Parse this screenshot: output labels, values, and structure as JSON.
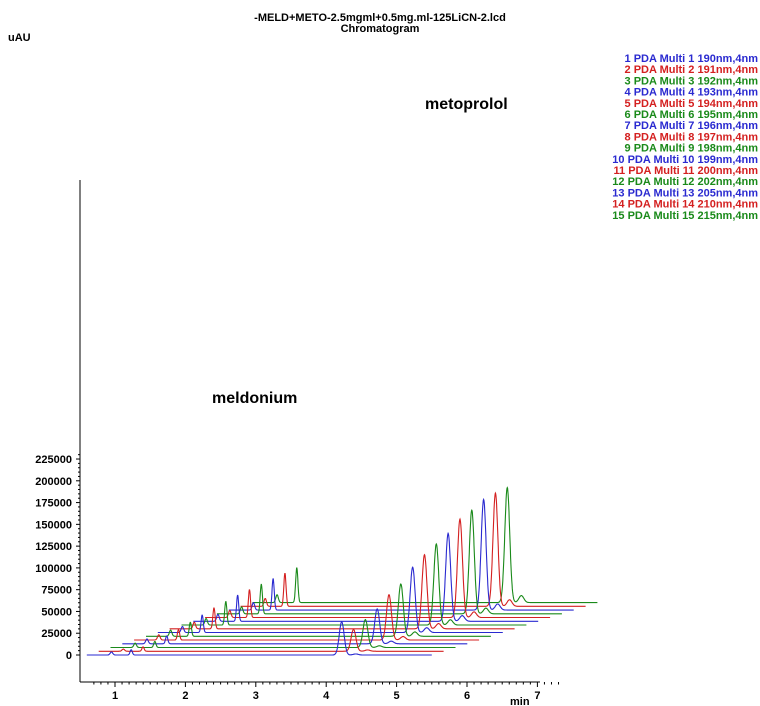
{
  "chart_data": {
    "type": "line",
    "title": "-MELD+METO-2.5mgml+0.5mg.ml-125LiCN-2.lcd",
    "subtitle": "Chromatogram",
    "ylabel": "uAU",
    "xlabel": "min",
    "x_ticks": [
      "1",
      "2",
      "3",
      "4",
      "5",
      "6",
      "7"
    ],
    "y_ticks": [
      "0",
      "25000",
      "50000",
      "75000",
      "100000",
      "125000",
      "150000",
      "175000",
      "200000",
      "225000"
    ],
    "ylim": [
      0,
      225000
    ],
    "xlim": [
      0.6,
      7.3
    ],
    "offset_per_trace": {
      "x_min": 0.168,
      "y_uAU": 4300
    },
    "annotations": [
      {
        "text": "meldonium",
        "x": 2.0,
        "y": 123000
      },
      {
        "text": "metoprolol",
        "x": 5.55,
        "y": 262000
      }
    ],
    "grid": false,
    "legend_position": "top-right",
    "series": [
      {
        "name": "1 PDA Multi 1 190nm,4nm",
        "color": "#2a2ad0",
        "peaks": [
          [
            0.95,
            3500
          ],
          [
            1.23,
            6000
          ],
          [
            4.22,
            38000
          ],
          [
            4.42,
            1200
          ]
        ]
      },
      {
        "name": "2 PDA Multi 2 191nm,4nm",
        "color": "#d42020",
        "peaks": [
          [
            0.95,
            2500
          ],
          [
            1.23,
            5000
          ],
          [
            4.22,
            25000
          ],
          [
            4.42,
            1500
          ]
        ]
      },
      {
        "name": "3 PDA Multi 3 192nm,4nm",
        "color": "#1a8a1a",
        "peaks": [
          [
            0.95,
            5000
          ],
          [
            1.23,
            7000
          ],
          [
            4.22,
            32000
          ],
          [
            4.42,
            2000
          ]
        ]
      },
      {
        "name": "4 PDA Multi 4 193nm,4nm",
        "color": "#2a2ad0",
        "peaks": [
          [
            0.95,
            5500
          ],
          [
            1.23,
            9000
          ],
          [
            4.22,
            40000
          ],
          [
            4.42,
            3000
          ]
        ]
      },
      {
        "name": "5 PDA Multi 5 194nm,4nm",
        "color": "#d42020",
        "peaks": [
          [
            0.95,
            6000
          ],
          [
            1.23,
            12000
          ],
          [
            4.22,
            52000
          ],
          [
            4.42,
            4000
          ]
        ]
      },
      {
        "name": "6 PDA Multi 6 195nm,4nm",
        "color": "#1a8a1a",
        "peaks": [
          [
            0.95,
            7000
          ],
          [
            1.23,
            16000
          ],
          [
            4.22,
            60000
          ],
          [
            4.42,
            5000
          ]
        ]
      },
      {
        "name": "7 PDA Multi 7 196nm,4nm",
        "color": "#2a2ad0",
        "peaks": [
          [
            0.95,
            7000
          ],
          [
            1.23,
            20000
          ],
          [
            4.22,
            75000
          ],
          [
            4.42,
            5500
          ]
        ]
      },
      {
        "name": "8 PDA Multi 8 197nm,4nm",
        "color": "#d42020",
        "peaks": [
          [
            0.95,
            7500
          ],
          [
            1.23,
            24000
          ],
          [
            4.22,
            85000
          ],
          [
            4.42,
            6000
          ]
        ]
      },
      {
        "name": "9 PDA Multi 9 198nm,4nm",
        "color": "#1a8a1a",
        "peaks": [
          [
            0.95,
            7500
          ],
          [
            1.23,
            27000
          ],
          [
            4.22,
            93000
          ],
          [
            4.42,
            6000
          ]
        ]
      },
      {
        "name": "10 PDA Multi 10 199nm,4nm",
        "color": "#2a2ad0",
        "peaks": [
          [
            0.95,
            8000
          ],
          [
            1.23,
            30000
          ],
          [
            4.22,
            101000
          ],
          [
            4.42,
            6500
          ]
        ]
      },
      {
        "name": "11 PDA Multi 11 200nm,4nm",
        "color": "#d42020",
        "peaks": [
          [
            0.95,
            8000
          ],
          [
            1.23,
            32000
          ],
          [
            4.22,
            113000
          ],
          [
            4.42,
            6500
          ]
        ]
      },
      {
        "name": "12 PDA Multi 12 202nm,4nm",
        "color": "#1a8a1a",
        "peaks": [
          [
            0.95,
            8000
          ],
          [
            1.23,
            34000
          ],
          [
            4.22,
            119000
          ],
          [
            4.42,
            6500
          ]
        ]
      },
      {
        "name": "13 PDA Multi 13 205nm,4nm",
        "color": "#2a2ad0",
        "peaks": [
          [
            0.95,
            8500
          ],
          [
            1.23,
            36000
          ],
          [
            4.22,
            127000
          ],
          [
            4.42,
            7000
          ]
        ]
      },
      {
        "name": "14 PDA Multi 14 210nm,4nm",
        "color": "#d42020",
        "peaks": [
          [
            0.95,
            9000
          ],
          [
            1.23,
            38000
          ],
          [
            4.22,
            130000
          ],
          [
            4.42,
            7500
          ]
        ]
      },
      {
        "name": "15 PDA Multi 15 215nm,4nm",
        "color": "#1a8a1a",
        "peaks": [
          [
            0.95,
            9000
          ],
          [
            1.23,
            40000
          ],
          [
            4.22,
            132000
          ],
          [
            4.42,
            8000
          ]
        ]
      }
    ]
  }
}
